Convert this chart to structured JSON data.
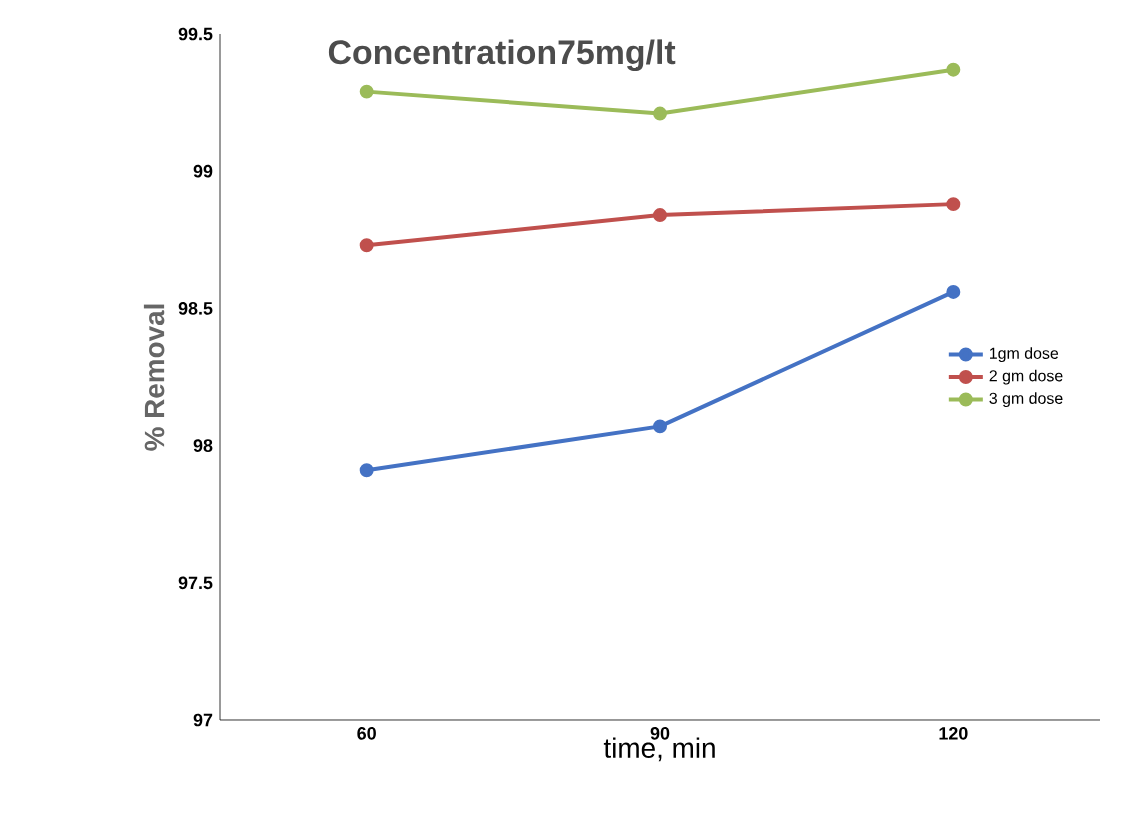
{
  "chart_data": {
    "type": "line",
    "title": "Concentration75mg/lt",
    "xlabel": "time, min",
    "ylabel": "% Removal",
    "categories": [
      "60",
      "90",
      "120"
    ],
    "series": [
      {
        "name": "1gm dose",
        "color": "#4472c4",
        "values": [
          97.91,
          98.07,
          98.56
        ]
      },
      {
        "name": "2 gm dose",
        "color": "#c0504d",
        "values": [
          98.73,
          98.84,
          98.88
        ]
      },
      {
        "name": "3 gm dose",
        "color": "#9bbb59",
        "values": [
          99.29,
          99.21,
          99.37
        ]
      }
    ],
    "ylim": [
      97,
      99.5
    ],
    "yticks": [
      97,
      97.5,
      98,
      98.5,
      99,
      99.5
    ],
    "grid": false,
    "legend": "right",
    "marker": "circle"
  }
}
